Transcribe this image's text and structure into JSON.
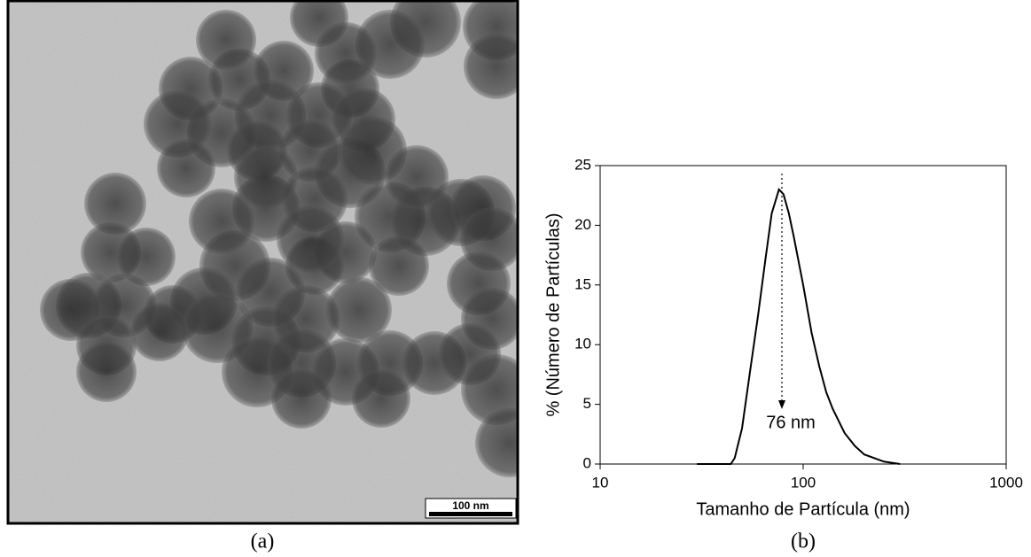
{
  "image": {
    "scale_bar": "100 nm",
    "caption": "(a)"
  },
  "chart_data": {
    "type": "line",
    "caption": "(b)",
    "x_label": "Tamanho de Partícula (nm)",
    "y_label": "% (Número de Partículas)",
    "annotation": "76 nm",
    "x": [
      30,
      40,
      44,
      46,
      50,
      55,
      60,
      65,
      70,
      76,
      80,
      85,
      90,
      100,
      110,
      120,
      130,
      140,
      160,
      180,
      200,
      250,
      300
    ],
    "values": [
      0,
      0,
      0,
      0.5,
      3,
      8,
      12.5,
      17,
      21,
      23,
      22.6,
      21,
      19,
      15,
      11,
      8.2,
      6,
      4.6,
      2.6,
      1.5,
      0.8,
      0.2,
      0
    ],
    "color": "#000000",
    "xlim": [
      10,
      1000
    ],
    "xticks": [
      10,
      100,
      1000
    ],
    "x_log": true,
    "ylim": [
      0,
      25
    ],
    "yticks": [
      0,
      5,
      10,
      15,
      20,
      25
    ],
    "grid": false
  }
}
